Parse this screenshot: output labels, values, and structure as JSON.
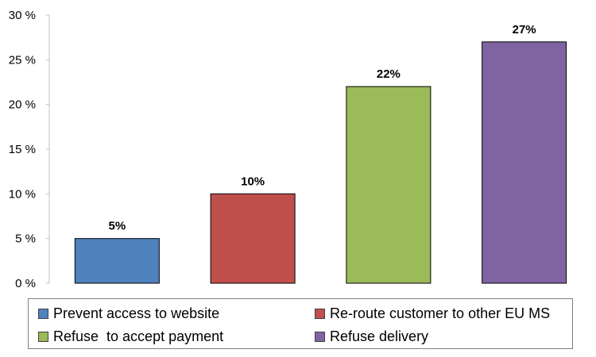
{
  "chart_data": {
    "type": "bar",
    "categories": [
      "Prevent access to website",
      "Re-route customer to other EU MS",
      "Refuse  to accept payment",
      "Refuse delivery"
    ],
    "values": [
      5,
      10,
      22,
      27
    ],
    "data_labels": [
      "5%",
      "10%",
      "22%",
      "27%"
    ],
    "colors": [
      "#4f81bd",
      "#c0504d",
      "#9bbb59",
      "#8064a2"
    ],
    "ylim": [
      0,
      30
    ],
    "yticks": [
      0,
      5,
      10,
      15,
      20,
      25,
      30
    ],
    "ytick_labels": [
      "0 %",
      "5 %",
      "10 %",
      "15 %",
      "20 %",
      "25 %",
      "30 %"
    ],
    "grid": false,
    "legend_position": "bottom",
    "title": "",
    "xlabel": "",
    "ylabel": ""
  }
}
